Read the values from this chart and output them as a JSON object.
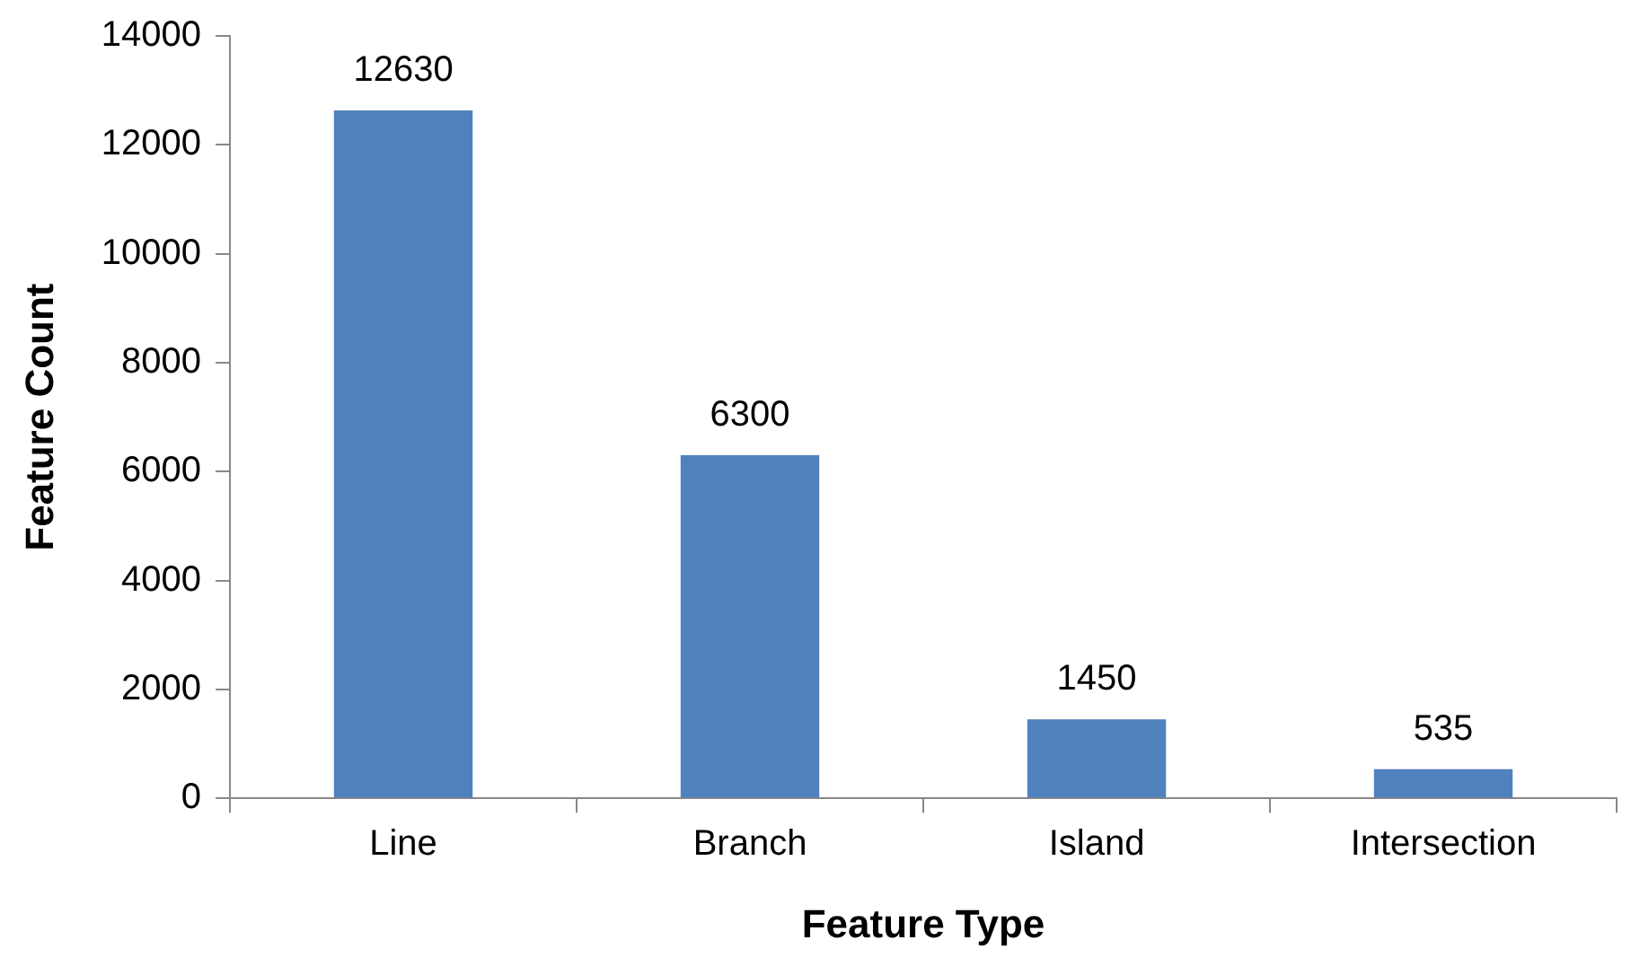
{
  "chart_data": {
    "type": "bar",
    "xlabel": "Feature Type",
    "ylabel": "Feature Count",
    "categories": [
      "Line",
      "Branch",
      "Island",
      "Intersection"
    ],
    "values": [
      12630,
      6300,
      1450,
      535
    ],
    "color": "#4f81bd",
    "ylim": [
      0,
      14000
    ],
    "yticks": [
      0,
      2000,
      4000,
      6000,
      8000,
      10000,
      12000,
      14000
    ],
    "grid": false,
    "legend": false,
    "data_labels": true
  }
}
